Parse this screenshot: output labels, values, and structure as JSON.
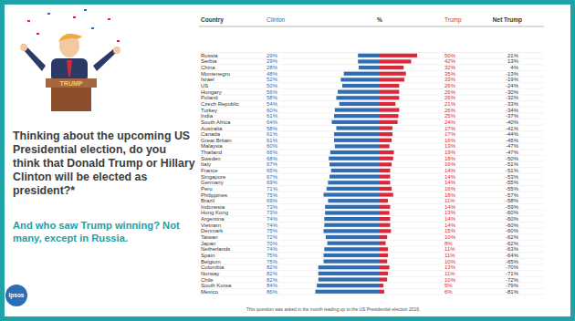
{
  "chart_data": {
    "type": "bar",
    "orientation": "horizontal",
    "title": "Thinking about the upcoming US Presidential election, do you think that Donald Trump or Hillary Clinton will be elected as president?*",
    "subtitle": "And who saw Trump winning? Not many, except in Russia.",
    "footnote": "This question was asked in the month leading up to the US Presidential election 2016.",
    "logo": "Ipsos",
    "podium_text": "TRUMP",
    "category_header": "Country",
    "value_header": "%",
    "net_header": "Net Trump",
    "categories": [
      "Russia",
      "Serbia",
      "China",
      "Montenegro",
      "Israel",
      "US",
      "Hungary",
      "Poland",
      "Czech Republic",
      "Turkey",
      "India",
      "South Africa",
      "Australia",
      "Canada",
      "Great Britain",
      "Malaysia",
      "Thailand",
      "Sweden",
      "Italy",
      "France",
      "Singapore",
      "Germany",
      "Peru",
      "Philippines",
      "Brazil",
      "Indonesia",
      "Hong Kong",
      "Argentina",
      "Vietnam",
      "Denmark",
      "Taiwan",
      "Japan",
      "Netherlands",
      "Spain",
      "Belgium",
      "Colombia",
      "Norway",
      "Chile",
      "South Korea",
      "Mexico"
    ],
    "series": [
      {
        "name": "Clinton",
        "color": "#2e6db4",
        "values": [
          29,
          29,
          28,
          48,
          52,
          50,
          56,
          58,
          54,
          60,
          61,
          64,
          58,
          61,
          61,
          60,
          66,
          68,
          67,
          65,
          67,
          69,
          71,
          75,
          69,
          73,
          73,
          74,
          74,
          75,
          72,
          70,
          74,
          75,
          75,
          82,
          82,
          82,
          84,
          86
        ],
        "value_labels": [
          "29%",
          "29%",
          "28%",
          "48%",
          "52%",
          "50%",
          "56%",
          "58%",
          "54%",
          "60%",
          "61%",
          "64%",
          "58%",
          "61%",
          "61%",
          "60%",
          "66%",
          "68%",
          "67%",
          "65%",
          "67%",
          "69%",
          "71%",
          "75%",
          "69%",
          "73%",
          "73%",
          "74%",
          "74%",
          "75%",
          "72%",
          "70%",
          "74%",
          "75%",
          "75%",
          "82%",
          "82%",
          "82%",
          "84%",
          "86%"
        ]
      },
      {
        "name": "Trump",
        "color": "#d8283a",
        "values": [
          50,
          42,
          32,
          35,
          33,
          26,
          26,
          26,
          21,
          26,
          25,
          24,
          17,
          17,
          16,
          13,
          19,
          18,
          16,
          14,
          14,
          14,
          16,
          18,
          11,
          14,
          13,
          14,
          14,
          15,
          10,
          8,
          11,
          11,
          10,
          13,
          11,
          10,
          5,
          6
        ],
        "value_labels": [
          "50%",
          "42%",
          "32%",
          "35%",
          "33%",
          "26%",
          "26%",
          "26%",
          "21%",
          "26%",
          "25%",
          "24%",
          "17%",
          "17%",
          "16%",
          "13%",
          "19%",
          "18%",
          "16%",
          "14%",
          "14%",
          "14%",
          "16%",
          "18%",
          "11%",
          "14%",
          "13%",
          "14%",
          "14%",
          "15%",
          "10%",
          "8%",
          "11%",
          "11%",
          "10%",
          "13%",
          "11%",
          "10%",
          "5%",
          "6%"
        ]
      }
    ],
    "net_values": [
      21,
      13,
      4,
      -13,
      -19,
      -24,
      -30,
      -32,
      -33,
      -34,
      -37,
      -40,
      -41,
      -44,
      -45,
      -47,
      -47,
      -50,
      -51,
      -51,
      -53,
      -55,
      -55,
      -57,
      -58,
      -59,
      -60,
      -60,
      -60,
      -60,
      -62,
      -62,
      -63,
      -64,
      -65,
      -70,
      -71,
      -72,
      -79,
      -81
    ],
    "net_labels": [
      "21%",
      "13%",
      "4%",
      "-13%",
      "-19%",
      "-24%",
      "-30%",
      "-32%",
      "-33%",
      "-34%",
      "-37%",
      "-40%",
      "-41%",
      "-44%",
      "-45%",
      "-47%",
      "-47%",
      "-50%",
      "-51%",
      "-51%",
      "-53%",
      "-55%",
      "-55%",
      "-57%",
      "-58%",
      "-59%",
      "-60%",
      "-60%",
      "-60%",
      "-60%",
      "-62%",
      "-62%",
      "-63%",
      "-64%",
      "-65%",
      "-70%",
      "-71%",
      "-72%",
      "-79%",
      "-81%"
    ],
    "xlim": [
      0,
      100
    ],
    "data_labels": true,
    "tick_labels": false,
    "grid": false
  }
}
